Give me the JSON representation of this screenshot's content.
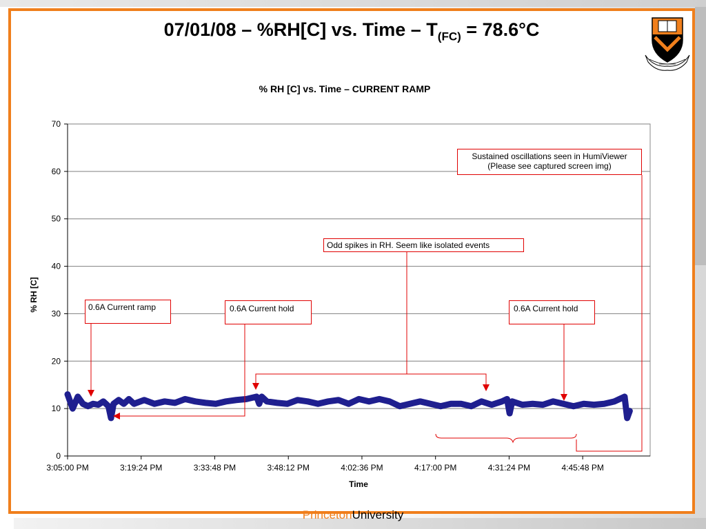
{
  "slide": {
    "title_main": "07/01/08 – %RH[C] vs. Time – T",
    "title_sub": "(FC)",
    "title_tail": " = 78.6°C",
    "footer_brand": "Princeton",
    "footer_univ": "University",
    "logo_icon": "princeton-shield-logo",
    "accent_color": "#f07f1c",
    "series_color": "#1f1f8f",
    "callout_color": "#e00000"
  },
  "annotations": {
    "current_ramp": "0.6A Current ramp",
    "current_hold_1": "0.6A Current hold",
    "current_hold_2": "0.6A Current hold",
    "odd_spikes": "Odd spikes in RH. Seem like isolated events",
    "oscillations_line1": "Sustained oscillations seen in HumiViewer",
    "oscillations_line2": "(Please see captured screen img)"
  },
  "chart_data": {
    "type": "scatter",
    "title": "% RH [C] vs. Time – CURRENT RAMP",
    "xlabel": "Time",
    "ylabel": "% RH [C]",
    "ylim": [
      0,
      70
    ],
    "yticks": [
      0,
      10,
      20,
      30,
      40,
      50,
      60,
      70
    ],
    "xlim": [
      "3:05:00 PM",
      "4:59:00 PM"
    ],
    "xticks": [
      "3:05:00 PM",
      "3:19:24 PM",
      "3:33:48 PM",
      "3:48:12 PM",
      "4:02:36 PM",
      "4:17:00 PM",
      "4:31:24 PM",
      "4:45:48 PM"
    ],
    "grid": "horizontal",
    "legend": "none",
    "series": [
      {
        "x": [
          "3:05:00 PM",
          "3:06:00 PM",
          "3:07:00 PM",
          "3:08:00 PM",
          "3:09:00 PM",
          "3:10:00 PM",
          "3:11:00 PM",
          "3:12:00 PM",
          "3:13:00 PM",
          "3:13:30 PM",
          "3:14:00 PM",
          "3:15:00 PM",
          "3:16:00 PM",
          "3:17:00 PM",
          "3:18:00 PM",
          "3:20:00 PM",
          "3:22:00 PM",
          "3:24:00 PM",
          "3:26:00 PM",
          "3:28:00 PM",
          "3:30:00 PM",
          "3:32:00 PM",
          "3:34:00 PM",
          "3:36:00 PM",
          "3:38:00 PM",
          "3:40:00 PM",
          "3:42:00 PM",
          "3:42:30 PM",
          "3:43:00 PM",
          "3:44:00 PM",
          "3:46:00 PM",
          "3:48:00 PM",
          "3:50:00 PM",
          "3:52:00 PM",
          "3:54:00 PM",
          "3:56:00 PM",
          "3:58:00 PM",
          "4:00:00 PM",
          "4:02:00 PM",
          "4:04:00 PM",
          "4:06:00 PM",
          "4:08:00 PM",
          "4:10:00 PM",
          "4:12:00 PM",
          "4:14:00 PM",
          "4:16:00 PM",
          "4:18:00 PM",
          "4:20:00 PM",
          "4:22:00 PM",
          "4:24:00 PM",
          "4:26:00 PM",
          "4:28:00 PM",
          "4:30:00 PM",
          "4:31:00 PM",
          "4:31:30 PM",
          "4:32:00 PM",
          "4:34:00 PM",
          "4:36:00 PM",
          "4:38:00 PM",
          "4:40:00 PM",
          "4:42:00 PM",
          "4:44:00 PM",
          "4:46:00 PM",
          "4:48:00 PM",
          "4:50:00 PM",
          "4:52:00 PM",
          "4:53:00 PM",
          "4:54:00 PM",
          "4:54:30 PM",
          "4:55:00 PM"
        ],
        "y": [
          13,
          10,
          12.5,
          11,
          10.5,
          11,
          10.8,
          11.5,
          10.5,
          8,
          11,
          11.8,
          11,
          12,
          11,
          11.8,
          11,
          11.5,
          11.2,
          12,
          11.5,
          11.2,
          11,
          11.5,
          11.8,
          12,
          12.5,
          11,
          12.5,
          11.5,
          11.2,
          11,
          11.8,
          11.5,
          11,
          11.5,
          11.8,
          11,
          12,
          11.5,
          12,
          11.5,
          10.5,
          11,
          11.5,
          11,
          10.5,
          11,
          11,
          10.5,
          11.5,
          10.8,
          11.5,
          12,
          9,
          11.5,
          10.8,
          11,
          10.8,
          11.5,
          11,
          10.5,
          11,
          10.8,
          11,
          11.5,
          12,
          12.5,
          8,
          9.5
        ]
      }
    ]
  }
}
